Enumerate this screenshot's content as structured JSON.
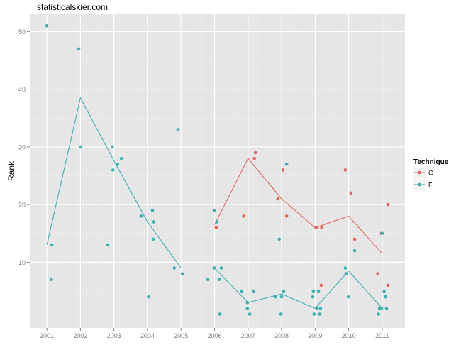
{
  "chart_data": {
    "type": "scatter",
    "title": "statisticalskier.com",
    "xlabel": "",
    "ylabel": "Rank",
    "xlim": [
      2000.49,
      2011.68
    ],
    "ylim": [
      -1.4,
      53
    ],
    "x_ticks": [
      2001,
      2002,
      2003,
      2004,
      2005,
      2006,
      2007,
      2008,
      2009,
      2010,
      2011
    ],
    "y_ticks": [
      10,
      20,
      30,
      40,
      50
    ],
    "grid": true,
    "legend": {
      "title": "Technique",
      "placement": "right",
      "entries": [
        "C",
        "F"
      ]
    },
    "series": [
      {
        "name": "C",
        "color": "#E0645A",
        "points": [
          [
            2006.05,
            16
          ],
          [
            2006.87,
            18
          ],
          [
            2007.19,
            28
          ],
          [
            2007.22,
            29
          ],
          [
            2007.89,
            21
          ],
          [
            2008.04,
            26
          ],
          [
            2008.15,
            18
          ],
          [
            2009.03,
            16
          ],
          [
            2009.2,
            16
          ],
          [
            2009.18,
            6
          ],
          [
            2009.9,
            26
          ],
          [
            2010.07,
            22
          ],
          [
            2010.18,
            14
          ],
          [
            2010.98,
            15
          ],
          [
            2010.87,
            8
          ],
          [
            2011.17,
            20
          ],
          [
            2011.17,
            6
          ]
        ],
        "line": [
          [
            2006,
            16.5
          ],
          [
            2007,
            28
          ],
          [
            2008,
            21
          ],
          [
            2009,
            16
          ],
          [
            2010,
            18
          ],
          [
            2011,
            11.5
          ]
        ]
      },
      {
        "name": "F",
        "color": "#3DAFB3",
        "points": [
          [
            2001.0,
            51
          ],
          [
            2001.13,
            7
          ],
          [
            2001.15,
            13
          ],
          [
            2001.95,
            47
          ],
          [
            2002.01,
            30
          ],
          [
            2002.82,
            13
          ],
          [
            2002.95,
            30
          ],
          [
            2002.97,
            26
          ],
          [
            2003.11,
            27
          ],
          [
            2003.22,
            28
          ],
          [
            2003.81,
            18
          ],
          [
            2004.03,
            4
          ],
          [
            2004.15,
            19
          ],
          [
            2004.19,
            17
          ],
          [
            2004.17,
            14
          ],
          [
            2004.91,
            33
          ],
          [
            2004.8,
            9
          ],
          [
            2005.04,
            8
          ],
          [
            2005.8,
            7
          ],
          [
            2005.99,
            9
          ],
          [
            2006.07,
            17
          ],
          [
            2005.99,
            19
          ],
          [
            2006.14,
            7
          ],
          [
            2006.16,
            1
          ],
          [
            2006.2,
            9
          ],
          [
            2006.81,
            5
          ],
          [
            2006.98,
            3
          ],
          [
            2006.98,
            2
          ],
          [
            2007.05,
            1
          ],
          [
            2007.17,
            5
          ],
          [
            2007.81,
            4
          ],
          [
            2007.93,
            14
          ],
          [
            2008.0,
            4
          ],
          [
            2007.98,
            1
          ],
          [
            2008.06,
            5
          ],
          [
            2008.15,
            27
          ],
          [
            2008.95,
            5
          ],
          [
            2008.93,
            4
          ],
          [
            2008.97,
            1
          ],
          [
            2009.05,
            2
          ],
          [
            2009.1,
            5
          ],
          [
            2009.14,
            1
          ],
          [
            2009.16,
            2
          ],
          [
            2009.9,
            9
          ],
          [
            2009.92,
            8
          ],
          [
            2009.99,
            4
          ],
          [
            2010.18,
            12
          ],
          [
            2011.0,
            15
          ],
          [
            2010.89,
            1
          ],
          [
            2010.92,
            2
          ],
          [
            2010.98,
            2
          ],
          [
            2011.06,
            5
          ],
          [
            2011.1,
            4
          ],
          [
            2011.13,
            2
          ]
        ],
        "line": [
          [
            2001,
            13
          ],
          [
            2002,
            38.5
          ],
          [
            2003,
            27.6
          ],
          [
            2004,
            17
          ],
          [
            2005,
            9
          ],
          [
            2006,
            9
          ],
          [
            2007,
            3
          ],
          [
            2008,
            4.5
          ],
          [
            2009,
            2
          ],
          [
            2010,
            8.5
          ],
          [
            2011,
            2
          ]
        ]
      }
    ]
  }
}
